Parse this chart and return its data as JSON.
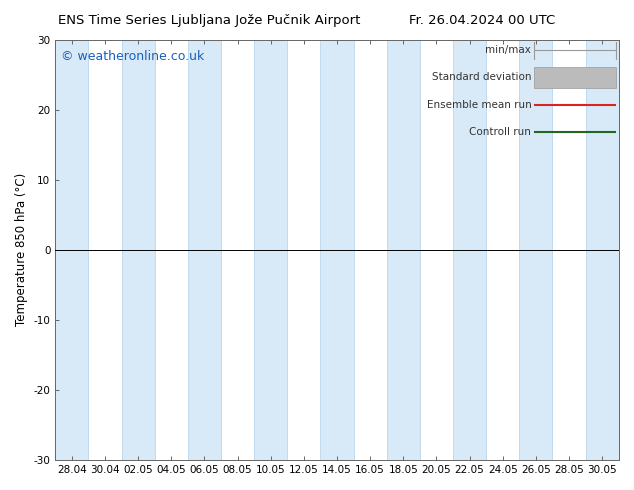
{
  "title_left": "ENS Time Series Ljubljana Jože Pučnik Airport",
  "title_right": "Fr. 26.04.2024 00 UTC",
  "ylabel": "Temperature 850 hPa (°C)",
  "watermark": "© weatheronline.co.uk",
  "ylim": [
    -30,
    30
  ],
  "yticks": [
    -30,
    -20,
    -10,
    0,
    10,
    20,
    30
  ],
  "xtick_labels": [
    "28.04",
    "30.04",
    "02.05",
    "04.05",
    "06.05",
    "08.05",
    "10.05",
    "12.05",
    "14.05",
    "16.05",
    "18.05",
    "20.05",
    "22.05",
    "24.05",
    "26.05",
    "28.05",
    "30.05"
  ],
  "band_fill_color": "#d8eaf8",
  "band_edge_color": "#b0cfe8",
  "zero_line_color": "#000000",
  "legend_labels": [
    "min/max",
    "Standard deviation",
    "Ensemble mean run",
    "Controll run"
  ],
  "legend_colors": [
    "#999999",
    "#aaaaaa",
    "#dd2222",
    "#226622"
  ],
  "legend_lw": [
    1.0,
    4.0,
    1.5,
    1.5
  ],
  "bg_color": "#ffffff",
  "title_fontsize": 9.5,
  "tick_fontsize": 7.5,
  "ylabel_fontsize": 8.5,
  "watermark_fontsize": 9,
  "legend_fontsize": 7.5
}
